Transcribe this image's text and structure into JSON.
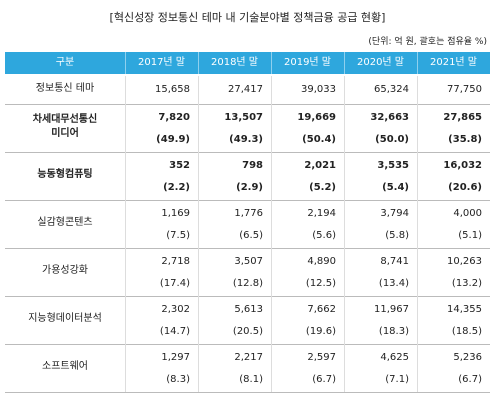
{
  "title": "[혁신성장 정보통신 테마 내 기술분야별 정책금융 공급 현황]",
  "unit": "(단위: 억 원, 괄호는 점유율 %)",
  "table": {
    "header": [
      "구분",
      "2017년 말",
      "2018년 말",
      "2019년 말",
      "2020년 말",
      "2021년 말"
    ],
    "rows": [
      {
        "label": [
          "정보통신 테마"
        ],
        "values": [
          "15,658",
          "27,417",
          "39,033",
          "65,324",
          "77,750"
        ]
      },
      {
        "label": [
          "차세대무선통신",
          "미디어"
        ],
        "bold": true,
        "values": [
          "7,820",
          "13,507",
          "19,669",
          "32,663",
          "27,865"
        ],
        "shares": [
          "(49.9)",
          "(49.3)",
          "(50.4)",
          "(50.0)",
          "(35.8)"
        ]
      },
      {
        "label": [
          "능동형컴퓨팅"
        ],
        "bold": true,
        "values": [
          "352",
          "798",
          "2,021",
          "3,535",
          "16,032"
        ],
        "shares": [
          "(2.2)",
          "(2.9)",
          "(5.2)",
          "(5.4)",
          "(20.6)"
        ]
      },
      {
        "label": [
          "실감형콘텐츠"
        ],
        "values": [
          "1,169",
          "1,776",
          "2,194",
          "3,794",
          "4,000"
        ],
        "shares": [
          "(7.5)",
          "(6.5)",
          "(5.6)",
          "(5.8)",
          "(5.1)"
        ]
      },
      {
        "label": [
          "가용성강화"
        ],
        "values": [
          "2,718",
          "3,507",
          "4,890",
          "8,741",
          "10,263"
        ],
        "shares": [
          "(17.4)",
          "(12.8)",
          "(12.5)",
          "(13.4)",
          "(13.2)"
        ]
      },
      {
        "label": [
          "지능형데이터분석"
        ],
        "values": [
          "2,302",
          "5,613",
          "7,662",
          "11,967",
          "14,355"
        ],
        "shares": [
          "(14.7)",
          "(20.5)",
          "(19.6)",
          "(18.3)",
          "(18.5)"
        ]
      },
      {
        "label": [
          "소프트웨어"
        ],
        "values": [
          "1,297",
          "2,217",
          "2,597",
          "4,625",
          "5,236"
        ],
        "shares": [
          "(8.3)",
          "(8.1)",
          "(6.7)",
          "(7.1)",
          "(6.7)"
        ]
      }
    ]
  }
}
